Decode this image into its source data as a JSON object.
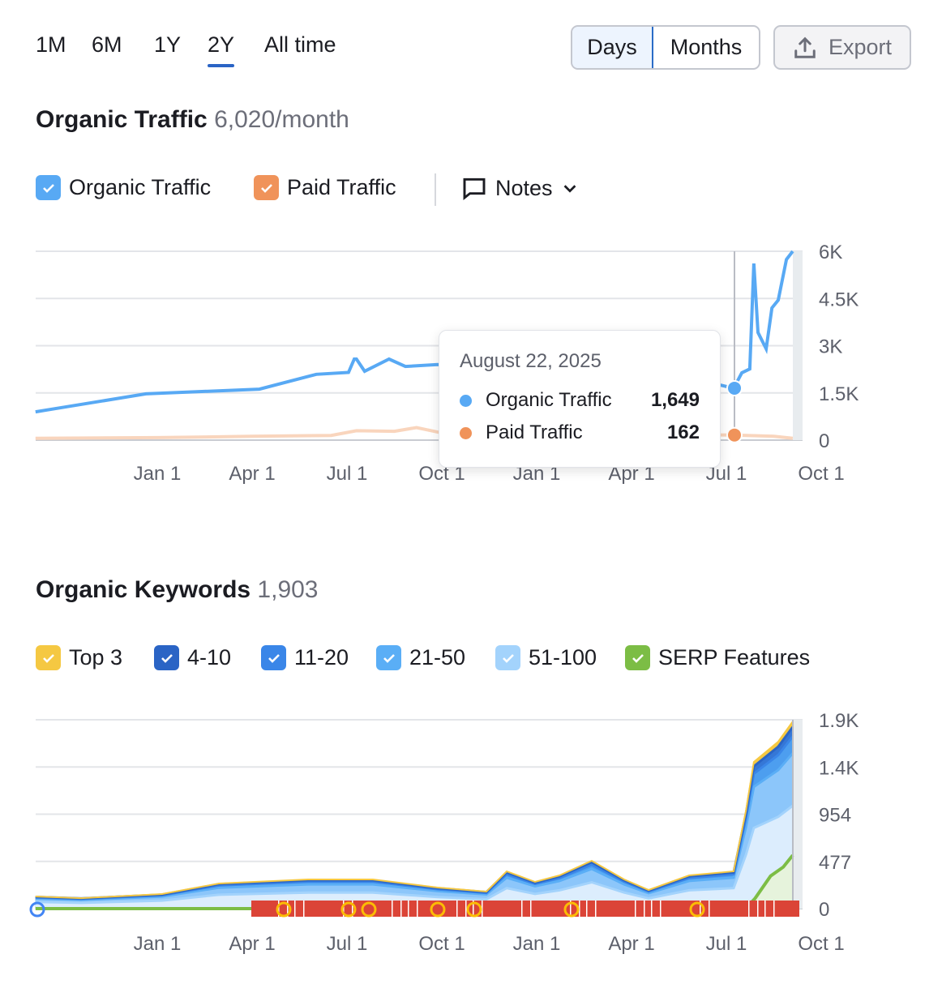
{
  "ranges": [
    "1M",
    "6M",
    "1Y",
    "2Y",
    "All time"
  ],
  "active_range": "2Y",
  "granularity": {
    "days": "Days",
    "months": "Months",
    "selected": "Days"
  },
  "export_label": "Export",
  "traffic": {
    "title": "Organic Traffic",
    "value": "6,020/month",
    "legend": {
      "organic": "Organic Traffic",
      "paid": "Paid Traffic",
      "notes": "Notes"
    },
    "tooltip": {
      "date": "August 22, 2025",
      "organic_label": "Organic Traffic",
      "organic_value": "1,649",
      "paid_label": "Paid Traffic",
      "paid_value": "162"
    }
  },
  "keywords": {
    "title": "Organic Keywords",
    "value": "1,903",
    "legend": [
      "Top 3",
      "4-10",
      "11-20",
      "21-50",
      "51-100",
      "SERP Features"
    ]
  },
  "colors": {
    "organic": "#58a9f4",
    "paid": "#f4a46f",
    "top3": "#f5c842",
    "k4_10": "#2a64c5",
    "k11_20": "#3a86e8",
    "k21_50": "#5aaef6",
    "k51_100": "#a3d3fc",
    "serp": "#7cbd45",
    "accent": "#2a64c5"
  },
  "chart_data": [
    {
      "type": "line",
      "title": "Organic Traffic",
      "x_unit": "months since Jan 1 2024",
      "xticks": [
        "Jan 1",
        "Apr 1",
        "Jul 1",
        "Oct 1",
        "Jan 1",
        "Apr 1",
        "Jul 1",
        "Oct 1"
      ],
      "yticks": [
        "0",
        "1.5K",
        "3K",
        "4.5K",
        "6K"
      ],
      "ylim": [
        0,
        6000
      ],
      "series": [
        {
          "name": "Organic Traffic",
          "x": [
            -3.85,
            -2.92,
            -0.36,
            3.23,
            5.03,
            6.05,
            6.23,
            6.3,
            6.56,
            7.33,
            7.85,
            8.87,
            10.4,
            13.0,
            15.5,
            17.6,
            18.23,
            18.49,
            18.74,
            18.87,
            19.0,
            19.26,
            19.44,
            19.64,
            19.9,
            20.1
          ],
          "values": [
            900,
            1050,
            1470,
            1620,
            2090,
            2150,
            2575,
            2575,
            2190,
            2575,
            2340,
            2400,
            2200,
            2000,
            1900,
            1800,
            1649,
            2140,
            2260,
            5610,
            3420,
            2900,
            4200,
            4450,
            5740,
            6000
          ]
        },
        {
          "name": "Paid Traffic",
          "x": [
            -3.85,
            0,
            3,
            5.5,
            6.3,
            7.5,
            8.2,
            8.9,
            12,
            15,
            18.23,
            19.5,
            20.1
          ],
          "values": [
            60,
            80,
            120,
            150,
            300,
            280,
            400,
            250,
            200,
            180,
            162,
            120,
            60
          ]
        }
      ]
    },
    {
      "type": "area",
      "stacked": true,
      "title": "Organic Keywords",
      "xticks": [
        "Jan 1",
        "Apr 1",
        "Jul 1",
        "Oct 1",
        "Jan 1",
        "Apr 1",
        "Jul 1",
        "Oct 1"
      ],
      "yticks": [
        "0",
        "477",
        "954",
        "1.4K",
        "1.9K"
      ],
      "ylim": [
        0,
        1908
      ],
      "x": [
        -3.85,
        -2.41,
        0.15,
        1.95,
        4.77,
        6.82,
        8.87,
        10.41,
        11.05,
        11.95,
        12.72,
        13.74,
        14.77,
        15.54,
        16.82,
        18.23,
        18.62,
        18.87,
        19.64,
        20.1
      ],
      "series": [
        {
          "name": "51-100",
          "values": [
            68,
            58,
            81,
            140,
            162,
            162,
            117,
            95,
            207,
            149,
            185,
            266,
            162,
            103,
            185,
            207,
            545,
            815,
            928,
            1040
          ]
        },
        {
          "name": "21-50",
          "values": [
            34,
            30,
            41,
            71,
            83,
            83,
            60,
            48,
            106,
            76,
            94,
            135,
            83,
            53,
            94,
            106,
            277,
            415,
            472,
            530
          ]
        },
        {
          "name": "11-20",
          "values": [
            11,
            10,
            13,
            23,
            27,
            27,
            19,
            15,
            34,
            24,
            30,
            43,
            27,
            17,
            30,
            34,
            89,
            133,
            152,
            170
          ]
        },
        {
          "name": "4-10",
          "values": [
            6,
            5,
            7,
            13,
            15,
            15,
            11,
            9,
            19,
            13,
            17,
            24,
            15,
            9,
            17,
            19,
            50,
            74,
            84,
            95
          ]
        },
        {
          "name": "Top 3",
          "values": [
            4,
            3,
            5,
            7,
            8,
            8,
            6,
            5,
            11,
            8,
            10,
            15,
            8,
            6,
            10,
            11,
            29,
            45,
            51,
            56
          ]
        }
      ],
      "serp": {
        "name": "SERP Features",
        "x": [
          -3.85,
          2.97,
          18.6,
          18.9,
          19.4,
          19.8,
          20.1
        ],
        "values": [
          0,
          0,
          0,
          100,
          330,
          420,
          540
        ]
      }
    }
  ]
}
